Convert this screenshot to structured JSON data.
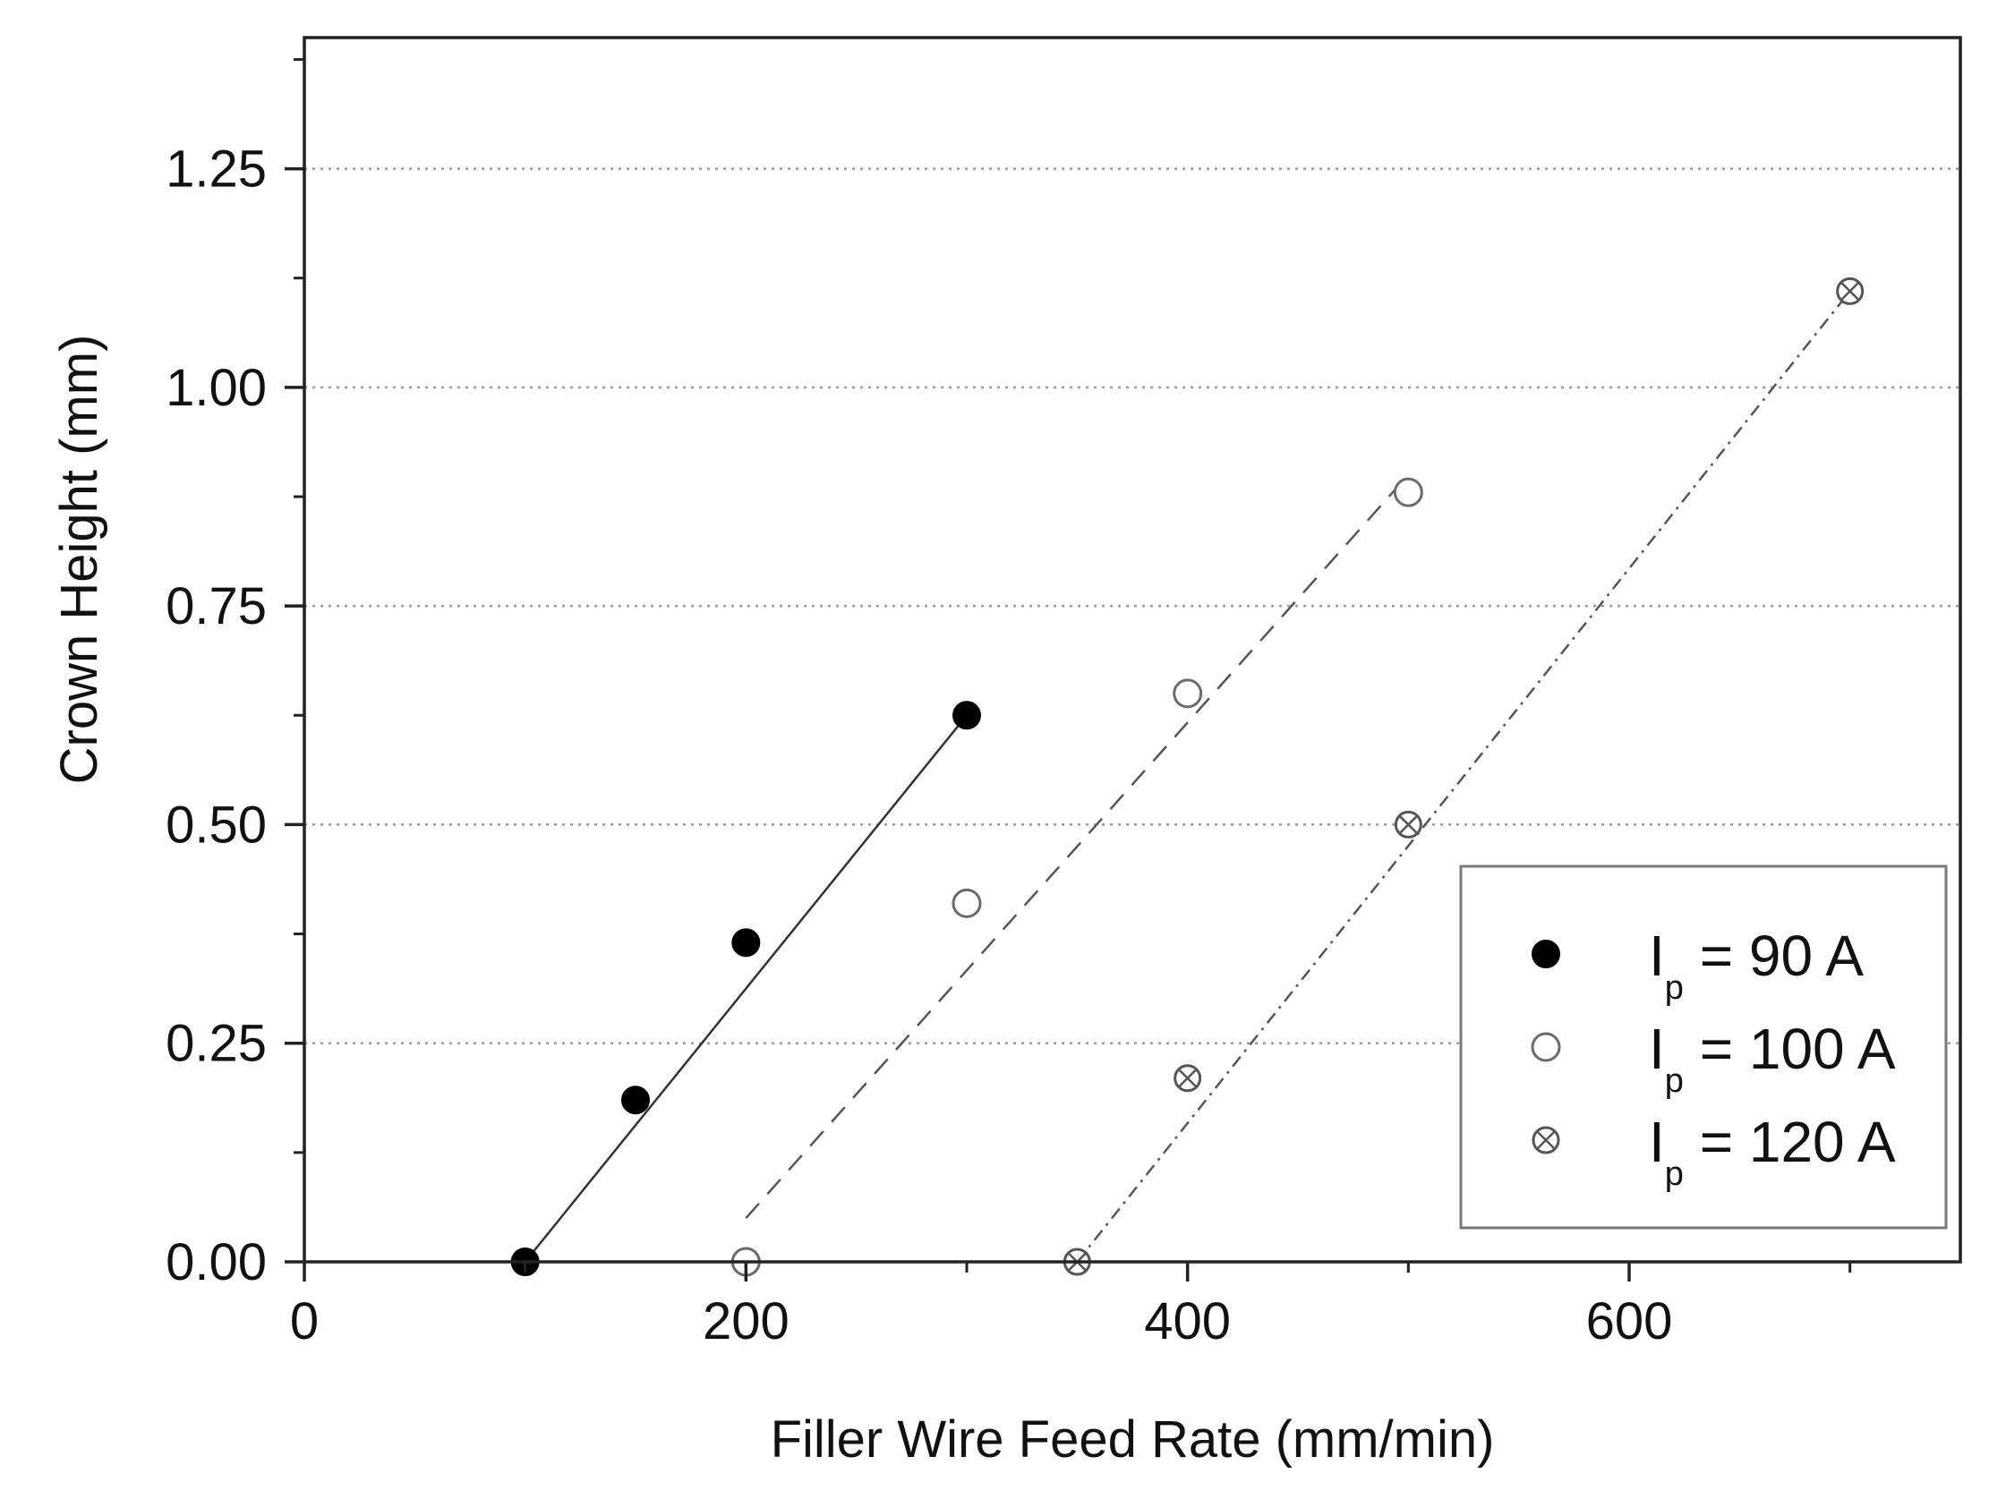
{
  "chart_data": {
    "type": "scatter",
    "xlabel": "Filler Wire Feed Rate (mm/min)",
    "ylabel": "Crown Height (mm)",
    "xlim": [
      0,
      750
    ],
    "ylim": [
      0,
      1.4
    ],
    "x_ticks": [
      "0",
      "200",
      "400",
      "600"
    ],
    "x_tick_values": [
      0,
      200,
      400,
      600
    ],
    "y_ticks": [
      "0.00",
      "0.25",
      "0.50",
      "0.75",
      "1.00",
      "1.25"
    ],
    "y_tick_values": [
      0,
      0.25,
      0.5,
      0.75,
      1.0,
      1.25
    ],
    "grid": "horizontal dotted",
    "legend_position": "bottom-right",
    "series": [
      {
        "key": "ip90",
        "name": "I",
        "subscript": "p",
        "suffix": " = 90 A",
        "marker": "filled-circle",
        "line_style": "solid",
        "x": [
          100,
          150,
          200,
          300
        ],
        "y": [
          0.0,
          0.185,
          0.365,
          0.625
        ],
        "fit_x": [
          100,
          300
        ],
        "fit_y": [
          0.0,
          0.625
        ]
      },
      {
        "key": "ip100",
        "name": "I",
        "subscript": "p",
        "suffix": " = 100 A",
        "marker": "open-circle",
        "line_style": "dashed",
        "x": [
          200,
          300,
          400,
          500
        ],
        "y": [
          0.0,
          0.41,
          0.65,
          0.88
        ],
        "fit_x": [
          200,
          500
        ],
        "fit_y": [
          0.05,
          0.9
        ]
      },
      {
        "key": "ip120",
        "name": "I",
        "subscript": "p",
        "suffix": " = 120 A",
        "marker": "crossed-circle",
        "line_style": "dash-dot",
        "x": [
          350,
          400,
          500,
          700
        ],
        "y": [
          0.0,
          0.21,
          0.5,
          1.11
        ],
        "fit_x": [
          350,
          700
        ],
        "fit_y": [
          0.0,
          1.11
        ]
      }
    ]
  }
}
